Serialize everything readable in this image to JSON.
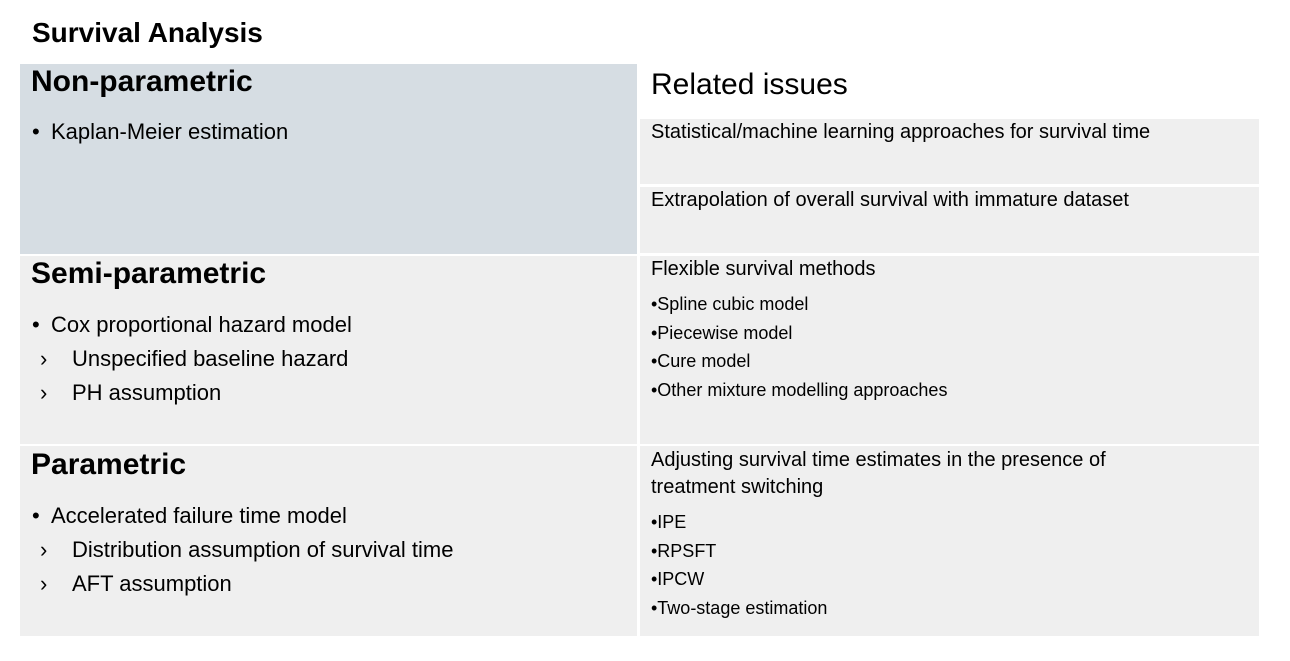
{
  "title": "Survival Analysis",
  "related_heading": "Related issues",
  "bullet": "•",
  "chevron": "›",
  "methods": [
    {
      "heading": "Non-parametric",
      "items": [
        {
          "text": "Kaplan-Meier estimation",
          "subs": []
        }
      ]
    },
    {
      "heading": "Semi-parametric",
      "items": [
        {
          "text": "Cox proportional hazard model",
          "subs": [
            "Unspecified baseline hazard",
            "PH assumption"
          ]
        }
      ]
    },
    {
      "heading": "Parametric",
      "items": [
        {
          "text": "Accelerated failure time model",
          "subs": [
            "Distribution assumption of survival time",
            "AFT assumption"
          ]
        }
      ]
    }
  ],
  "related": [
    {
      "title": "Statistical/machine learning approaches for survival time",
      "items": []
    },
    {
      "title": "Extrapolation of overall survival with immature dataset",
      "items": []
    },
    {
      "title": "Flexible survival methods",
      "items": [
        "•Spline cubic model",
        "•Piecewise model",
        "•Cure model",
        "•Other mixture modelling approaches"
      ]
    },
    {
      "title_lines": [
        "Adjusting survival time estimates in the presence of",
        "treatment switching"
      ],
      "items": [
        "•IPE",
        "•RPSFT",
        "•IPCW",
        "•Two-stage estimation"
      ]
    }
  ],
  "colors": {
    "highlight_cell": "#d6dde3",
    "cell": "#efefef",
    "background": "#ffffff"
  }
}
